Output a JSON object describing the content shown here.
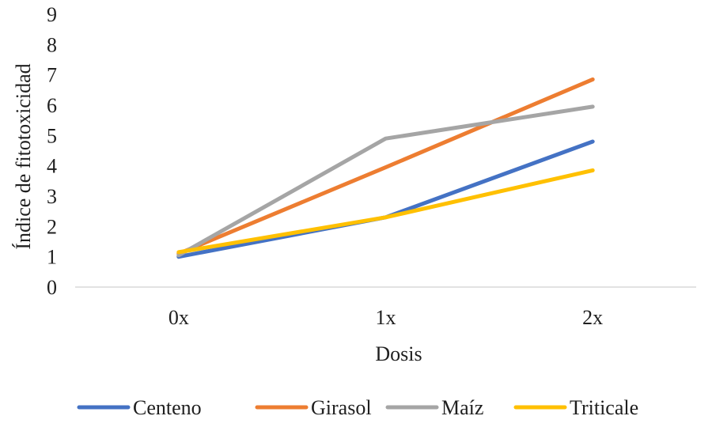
{
  "chart_data": {
    "type": "line",
    "title": "",
    "xlabel": "Dosis",
    "ylabel": "Índice de fitotoxicidad",
    "categories": [
      "0x",
      "1x",
      "2x"
    ],
    "ylim": [
      0,
      9
    ],
    "yticks": [
      0,
      1,
      2,
      3,
      4,
      5,
      6,
      7,
      8,
      9
    ],
    "grid": false,
    "legend_position": "bottom",
    "series": [
      {
        "name": "Centeno",
        "color": "#4472C4",
        "values": [
          1.0,
          2.3,
          4.8
        ]
      },
      {
        "name": "Girasol",
        "color": "#ED7D31",
        "values": [
          1.1,
          3.95,
          6.85
        ]
      },
      {
        "name": "Maíz",
        "color": "#A5A5A5",
        "values": [
          1.05,
          4.9,
          5.95
        ]
      },
      {
        "name": "Triticale",
        "color": "#FFC000",
        "values": [
          1.15,
          2.3,
          3.85
        ]
      }
    ]
  }
}
